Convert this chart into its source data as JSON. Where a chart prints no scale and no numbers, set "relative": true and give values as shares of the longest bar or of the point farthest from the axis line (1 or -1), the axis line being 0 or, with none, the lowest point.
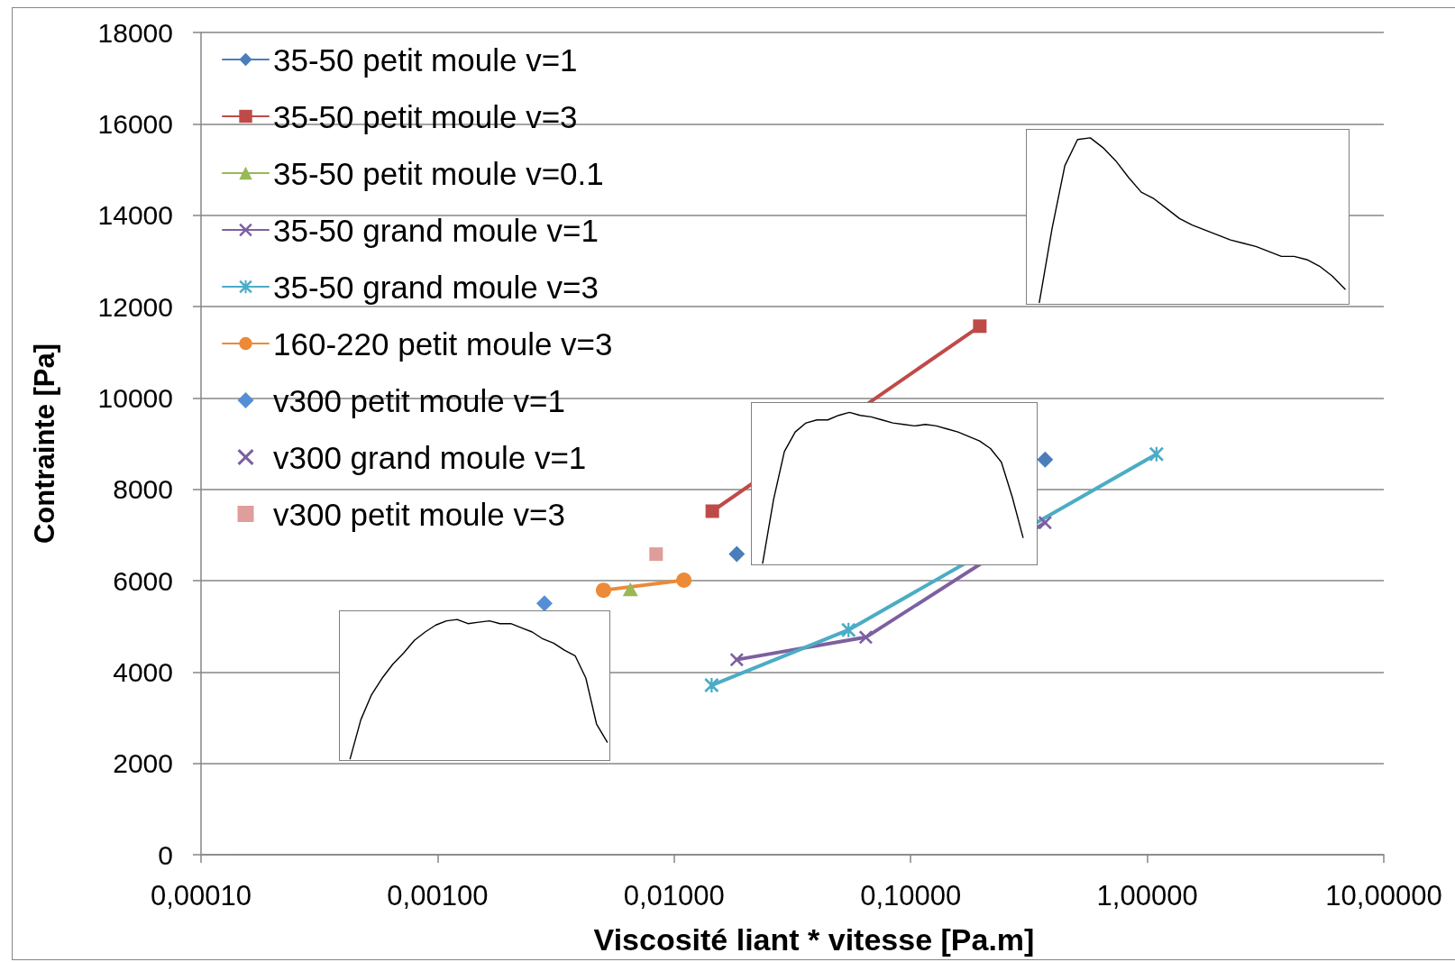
{
  "chart_data": [
    {
      "type": "line",
      "xlabel": "Viscosité liant * vitesse [Pa.m]",
      "ylabel": "Contrainte [Pa]",
      "xlim": [
        0.0001,
        10
      ],
      "xticks": [
        {
          "value": 0.0001,
          "label": "0,00010"
        },
        {
          "value": 0.001,
          "label": "0,00100"
        },
        {
          "value": 0.01,
          "label": "0,01000"
        },
        {
          "value": 0.1,
          "label": "0,10000"
        },
        {
          "value": 1,
          "label": "1,00000"
        },
        {
          "value": 10,
          "label": "10,00000"
        }
      ],
      "ylim": [
        0,
        18000
      ],
      "yticks": [
        0,
        2000,
        4000,
        6000,
        8000,
        10000,
        12000,
        14000,
        16000,
        18000
      ],
      "log": "x",
      "grid": "y",
      "legend": "top left",
      "series": [
        {
          "name": "35-50 petit moule v=1",
          "color": "#4a7ebb",
          "marker": "diamond",
          "x": [
            0.0184,
            0.0646,
            0.37
          ],
          "values": [
            6580,
            null,
            8650
          ]
        },
        {
          "name": "35-50 petit moule v=3",
          "color": "#be4b48",
          "marker": "square",
          "x": [
            0.0145,
            0.196
          ],
          "values": [
            7520,
            11570
          ]
        },
        {
          "name": "35-50 petit moule v=0.1",
          "color": "#98b954",
          "marker": "triangle",
          "x": [
            0.00653
          ],
          "values": [
            5810
          ]
        },
        {
          "name": "35-50 grand moule v=1",
          "color": "#7d60a0",
          "marker": "cross",
          "x": [
            0.0184,
            0.0646,
            0.37
          ],
          "values": [
            4270,
            4760,
            7270
          ]
        },
        {
          "name": "35-50 grand moule v=3",
          "color": "#4bacc6",
          "marker": "star",
          "x": [
            0.0144,
            0.0546,
            1.094
          ],
          "values": [
            3710,
            4920,
            8770
          ]
        },
        {
          "name": "160-220 petit moule v=3",
          "color": "#ec8a38",
          "marker": "circle",
          "x": [
            0.00503,
            0.011
          ],
          "values": [
            5790,
            6010
          ]
        },
        {
          "name": "v300 petit moule v=1",
          "color": "#558ed5",
          "marker": "diamond",
          "type": "scatter",
          "x": [
            0.00283
          ],
          "values": [
            5500
          ]
        },
        {
          "name": "v300 grand moule v=1",
          "color": "#7d60a0",
          "marker": "cross",
          "type": "scatter"
        },
        {
          "name": "v300 petit moule v=3",
          "color": "#df9d9c",
          "marker": "square",
          "type": "scatter",
          "x": [
            0.00839
          ],
          "values": [
            6580
          ]
        }
      ]
    },
    {
      "type": "line",
      "relative": true,
      "color": "#000000",
      "categories": [
        null,
        null,
        null,
        null,
        null,
        null,
        null,
        null,
        null,
        null,
        null,
        null,
        null,
        null,
        null,
        null,
        null,
        null,
        null,
        null,
        null,
        null,
        null,
        null,
        null
      ],
      "values": [
        0,
        0.45,
        0.83,
        0.99,
        1,
        0.94,
        0.86,
        0.76,
        0.67,
        0.63,
        0.57,
        0.51,
        0.47,
        0.44,
        0.41,
        0.38,
        0.36,
        0.34,
        0.31,
        0.28,
        0.28,
        0.26,
        0.22,
        0.16,
        0.08
      ]
    },
    {
      "type": "line",
      "relative": true,
      "color": "#000000",
      "categories": [
        null,
        null,
        null,
        null,
        null,
        null,
        null,
        null,
        null,
        null,
        null,
        null,
        null,
        null,
        null,
        null,
        null,
        null,
        null,
        null,
        null,
        null,
        null,
        null,
        null
      ],
      "values": [
        0,
        0.42,
        0.74,
        0.87,
        0.93,
        0.95,
        0.95,
        0.98,
        1,
        0.98,
        0.97,
        0.95,
        0.93,
        0.92,
        0.91,
        0.92,
        0.91,
        0.89,
        0.87,
        0.84,
        0.81,
        0.76,
        0.67,
        0.44,
        0.17
      ]
    },
    {
      "type": "line",
      "relative": true,
      "color": "#000000",
      "categories": [
        null,
        null,
        null,
        null,
        null,
        null,
        null,
        null,
        null,
        null,
        null,
        null,
        null,
        null,
        null,
        null,
        null,
        null,
        null,
        null,
        null,
        null,
        null,
        null,
        null
      ],
      "values": [
        0,
        0.28,
        0.46,
        0.58,
        0.68,
        0.76,
        0.85,
        0.91,
        0.96,
        0.99,
        1,
        0.97,
        0.98,
        0.99,
        0.97,
        0.97,
        0.94,
        0.91,
        0.86,
        0.83,
        0.78,
        0.74,
        0.58,
        0.25,
        0.12
      ]
    }
  ]
}
